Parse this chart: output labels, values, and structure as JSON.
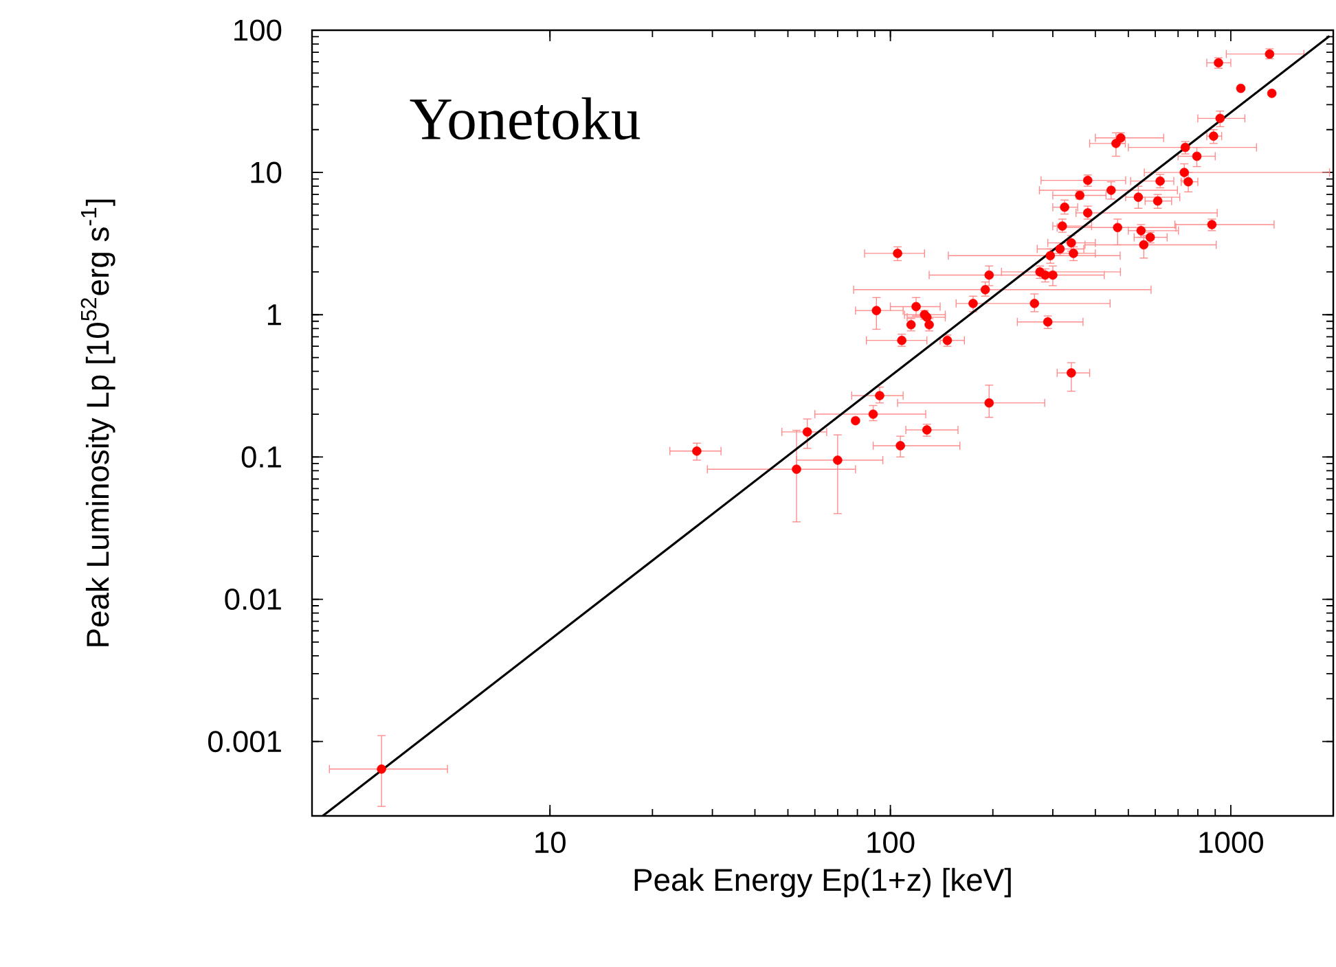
{
  "chart_data": {
    "type": "scatter",
    "title": "Yonetoku",
    "xlabel": "Peak Energy Ep(1+z) [keV]",
    "ylabel": "Peak Luminosity Lp [10$^{52}$erg s$^{-1}$]",
    "log": "xy",
    "xlim": [
      2,
      2000
    ],
    "ylim": [
      0.0003,
      100
    ],
    "xticks": [
      10,
      100,
      1000
    ],
    "yticks": [
      0.001,
      0.01,
      0.1,
      1,
      10,
      100
    ],
    "series": [
      {
        "color": "#ff0000",
        "marker": "circle",
        "x": [
          920,
          1300,
          1070,
          1320,
          930,
          890,
          460,
          475,
          735,
          795,
          730,
          750,
          620,
          380,
          445,
          360,
          535,
          610,
          325,
          380,
          320,
          465,
          880,
          545,
          580,
          555,
          340,
          345,
          315,
          295,
          105,
          275,
          285,
          300,
          195,
          190,
          175,
          265,
          91,
          119,
          126,
          128,
          115,
          130,
          290,
          108,
          147,
          340,
          93,
          195,
          89,
          79,
          57,
          128,
          107,
          27,
          70,
          53,
          3.2
        ],
        "values": [
          59,
          68,
          39,
          36,
          24,
          18,
          16,
          17.5,
          15,
          13,
          10,
          8.6,
          8.7,
          8.8,
          7.5,
          6.9,
          6.7,
          6.3,
          5.7,
          5.2,
          4.2,
          4.1,
          4.3,
          3.9,
          3.5,
          3.1,
          3.2,
          2.7,
          2.9,
          2.6,
          2.7,
          2.0,
          1.9,
          1.9,
          1.9,
          1.5,
          1.2,
          1.2,
          1.07,
          1.14,
          1.0,
          0.96,
          0.85,
          0.85,
          0.89,
          0.66,
          0.66,
          0.39,
          0.27,
          0.24,
          0.2,
          0.18,
          0.15,
          0.155,
          0.12,
          0.11,
          0.095,
          0.082,
          0.00064
        ],
        "xerrors": [
          [
            850,
            1000
          ],
          [
            970,
            1640
          ],
          null,
          null,
          [
            800,
            1100
          ],
          [
            850,
            940
          ],
          [
            385,
            490
          ],
          [
            400,
            635
          ],
          [
            500,
            1190
          ],
          [
            700,
            900
          ],
          [
            557,
            1950
          ],
          [
            715,
            800
          ],
          [
            508,
            680
          ],
          [
            277,
            491
          ],
          [
            274,
            697
          ],
          [
            300,
            430
          ],
          [
            491,
            708
          ],
          [
            560,
            670
          ],
          [
            300,
            355
          ],
          [
            351,
            912
          ],
          [
            300,
            390
          ],
          [
            309,
            690
          ],
          [
            685,
            1340
          ],
          [
            500,
            702
          ],
          [
            520,
            650
          ],
          [
            373,
            906
          ],
          [
            290,
            400
          ],
          [
            300,
            400
          ],
          [
            270,
            370
          ],
          [
            148,
            473
          ],
          [
            84,
            126
          ],
          [
            212,
            474
          ],
          null,
          [
            130,
            425
          ],
          null,
          [
            78,
            583
          ],
          null,
          [
            156,
            442
          ],
          [
            79,
            109
          ],
          [
            100,
            140
          ],
          [
            110,
            145
          ],
          [
            112,
            145
          ],
          null,
          null,
          [
            236,
            368
          ],
          [
            85,
            128
          ],
          [
            140,
            165
          ],
          [
            309,
            385
          ],
          [
            77,
            109
          ],
          [
            105,
            284
          ],
          [
            60,
            127
          ],
          null,
          [
            48,
            65
          ],
          [
            111,
            158
          ],
          [
            89,
            160
          ],
          [
            22.5,
            31.8
          ],
          [
            53,
            95
          ],
          [
            29,
            79
          ],
          [
            2.25,
            5.0
          ]
        ],
        "errors": [
          [
            54,
            64
          ],
          [
            63,
            74
          ],
          null,
          null,
          [
            21,
            27
          ],
          [
            16,
            20
          ],
          [
            13,
            19
          ],
          [
            16,
            19
          ],
          [
            13.5,
            16.5
          ],
          [
            11,
            15
          ],
          [
            8.8,
            11.5
          ],
          [
            7.3,
            10
          ],
          [
            7.8,
            9.7
          ],
          [
            8,
            9.6
          ],
          [
            6.5,
            8.6
          ],
          [
            6.5,
            7.4
          ],
          [
            5.6,
            8
          ],
          [
            5.6,
            7.0
          ],
          [
            5.1,
            6.4
          ],
          [
            4.7,
            5.8
          ],
          [
            3.8,
            4.7
          ],
          [
            3.1,
            4.7
          ],
          [
            3.9,
            4.7
          ],
          [
            3.5,
            4.3
          ],
          [
            3.2,
            3.8
          ],
          [
            2.5,
            3.6
          ],
          [
            2.8,
            3.6
          ],
          [
            2.4,
            3.0
          ],
          [
            2.6,
            3.2
          ],
          [
            2.3,
            2.9
          ],
          [
            2.4,
            3.0
          ],
          [
            1.8,
            2.2
          ],
          [
            1.7,
            2.1
          ],
          [
            1.6,
            2.2
          ],
          [
            1.6,
            2.2
          ],
          [
            1.35,
            1.7
          ],
          [
            1.05,
            1.35
          ],
          [
            1.05,
            1.4
          ],
          [
            0.79,
            1.32
          ],
          [
            0.98,
            1.32
          ],
          [
            0.93,
            1.07
          ],
          null,
          [
            0.77,
            0.94
          ],
          [
            0.77,
            0.94
          ],
          [
            0.8,
            0.98
          ],
          [
            0.6,
            0.73
          ],
          [
            0.6,
            0.72
          ],
          [
            0.29,
            0.46
          ],
          [
            0.24,
            0.31
          ],
          [
            0.19,
            0.32
          ],
          [
            0.18,
            0.23
          ],
          null,
          [
            0.115,
            0.185
          ],
          [
            0.14,
            0.17
          ],
          [
            0.1,
            0.14
          ],
          [
            0.095,
            0.125
          ],
          [
            0.04,
            0.143
          ],
          [
            0.035,
            0.154
          ],
          [
            0.00035,
            0.0011
          ]
        ]
      },
      {
        "type": "line",
        "color": "#000000",
        "marker": "none",
        "line_style": "solid",
        "x": [
          2.15,
          1950
        ],
        "values": [
          0.0003,
          91
        ]
      }
    ]
  }
}
